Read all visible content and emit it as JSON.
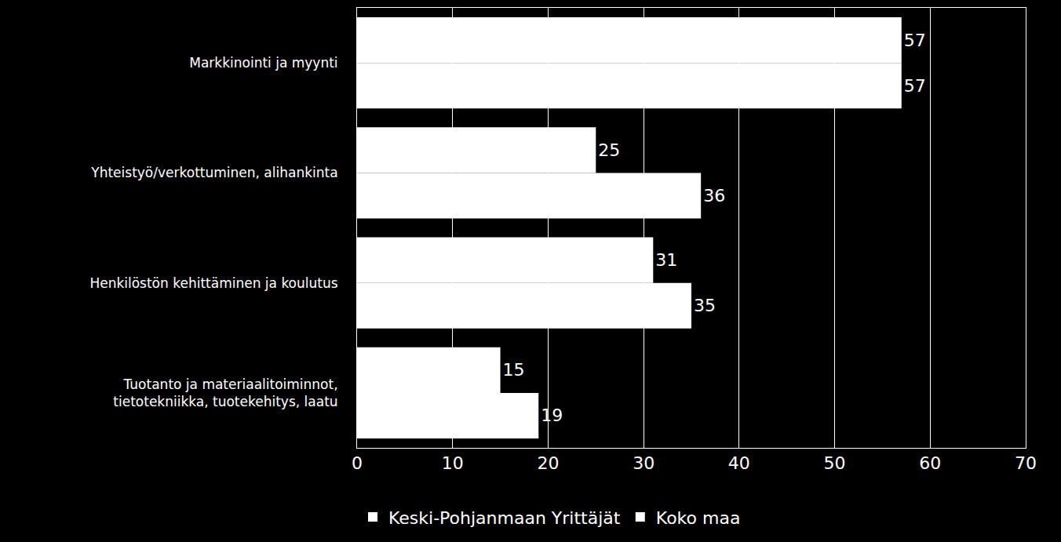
{
  "chart_data": {
    "type": "bar",
    "orientation": "horizontal",
    "categories": [
      "Markkinointi ja myynti",
      "Yhteistyö/verkottuminen, alihankinta",
      "Henkilöstön kehittäminen ja koulutus",
      "Tuotanto ja materiaalitoiminnot, tietotekniikka, tuotekehitys, laatu"
    ],
    "series": [
      {
        "name": "Keski-Pohjanmaan Yrittäjät",
        "color": "#ffffff",
        "values": [
          57,
          25,
          31,
          15
        ]
      },
      {
        "name": "Koko maa",
        "color": "#ffffff",
        "values": [
          57,
          36,
          35,
          19
        ]
      }
    ],
    "xlim": [
      0,
      70
    ],
    "xticks": [
      0,
      10,
      20,
      30,
      40,
      50,
      60,
      70
    ],
    "grid": true,
    "data_labels": true,
    "legend": "bottom"
  }
}
